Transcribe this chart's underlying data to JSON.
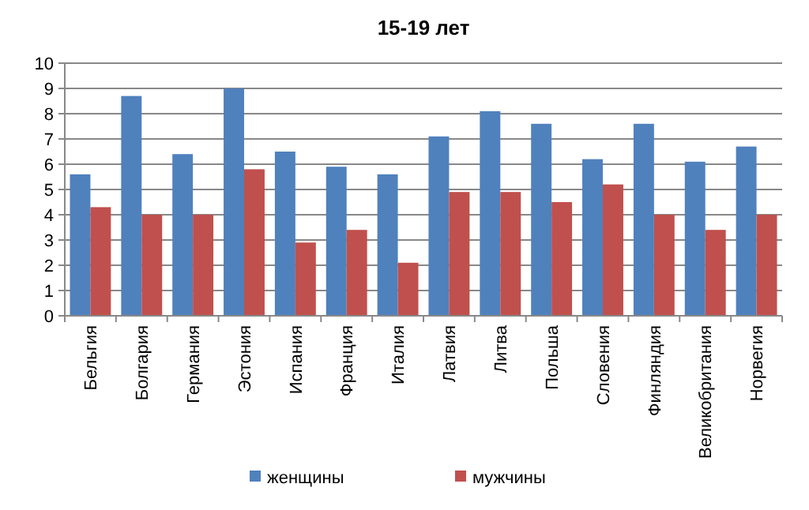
{
  "chart_data": {
    "type": "bar",
    "title": "15-19 лет",
    "categories": [
      "Бельгия",
      "Болгария",
      "Германия",
      "Эстония",
      "Испания",
      "Франция",
      "Италия",
      "Латвия",
      "Литва",
      "Польша",
      "Словения",
      "Финляндия",
      "Великобритания",
      "Норвегия"
    ],
    "series": [
      {
        "name": "женщины",
        "color": "#4f81bd",
        "values": [
          5.6,
          8.7,
          6.4,
          9.0,
          6.5,
          5.9,
          5.6,
          7.1,
          8.1,
          7.6,
          6.2,
          7.6,
          6.1,
          6.7
        ]
      },
      {
        "name": "мужчины",
        "color": "#c0504d",
        "values": [
          4.3,
          4.0,
          4.0,
          5.8,
          2.9,
          3.4,
          2.1,
          4.9,
          4.9,
          4.5,
          5.2,
          4.0,
          3.4,
          4.0
        ]
      }
    ],
    "ylim": [
      0,
      10
    ],
    "yticks": [
      0,
      1,
      2,
      3,
      4,
      5,
      6,
      7,
      8,
      9,
      10
    ],
    "grid": "y",
    "legend": "bottom"
  }
}
